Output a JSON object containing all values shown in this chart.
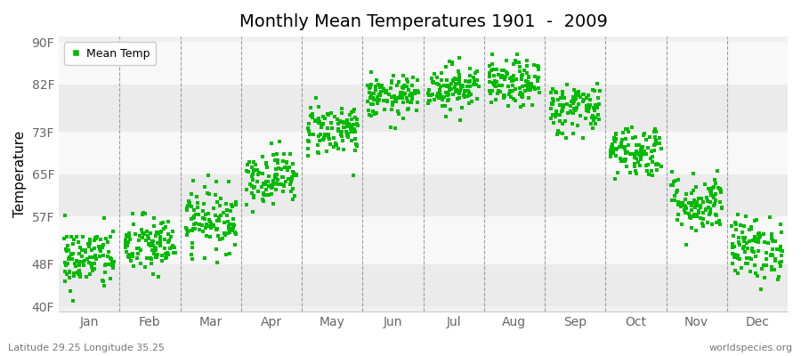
{
  "title": "Monthly Mean Temperatures 1901  -  2009",
  "ylabel": "Temperature",
  "yticks": [
    40,
    48,
    57,
    65,
    73,
    82,
    90
  ],
  "ytick_labels": [
    "40F",
    "48F",
    "57F",
    "65F",
    "73F",
    "82F",
    "90F"
  ],
  "ylim": [
    39,
    91
  ],
  "months": [
    "Jan",
    "Feb",
    "Mar",
    "Apr",
    "May",
    "Jun",
    "Jul",
    "Aug",
    "Sep",
    "Oct",
    "Nov",
    "Dec"
  ],
  "month_means": [
    49.0,
    51.5,
    56.5,
    64.5,
    73.5,
    79.5,
    81.5,
    82.0,
    77.5,
    69.5,
    59.5,
    51.0
  ],
  "month_stds": [
    3.0,
    2.8,
    3.0,
    2.5,
    2.5,
    2.0,
    2.2,
    2.2,
    2.5,
    2.5,
    2.8,
    3.0
  ],
  "n_years": 109,
  "dot_color": "#00bb00",
  "dot_size": 6,
  "background_color": "#f0f0f0",
  "band_colors": [
    "#ebebeb",
    "#f8f8f8"
  ],
  "grid_color": "#888888",
  "footer_left": "Latitude 29.25 Longitude 35.25",
  "footer_right": "worldspecies.org",
  "legend_label": "Mean Temp",
  "seed": 42
}
